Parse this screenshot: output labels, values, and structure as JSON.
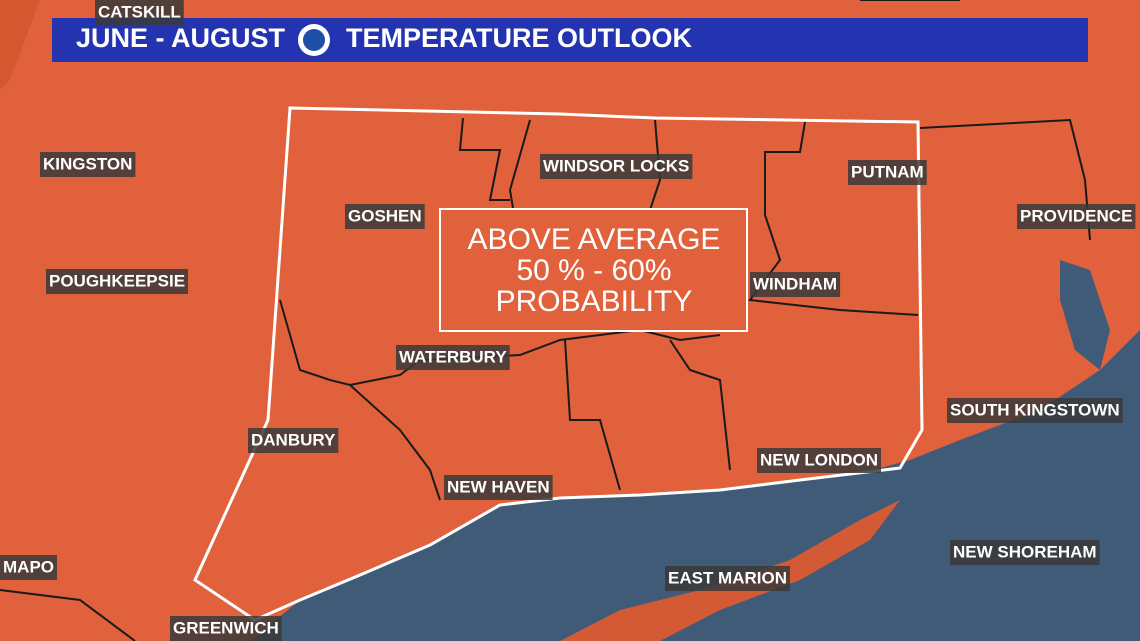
{
  "header": {
    "title_left": "JUNE - AUGUST",
    "title_right": "TEMPERATURE OUTLOOK"
  },
  "outlook": {
    "lines": [
      "ABOVE AVERAGE",
      "50 % - 60%",
      "PROBABILITY"
    ]
  },
  "places": [
    {
      "label": "CATSKILL"
    },
    {
      "label": "KINGSTON"
    },
    {
      "label": "POUGHKEEPSIE"
    },
    {
      "label": "GOSHEN"
    },
    {
      "label": "WINDSOR LOCKS"
    },
    {
      "label": "PUTNAM"
    },
    {
      "label": "PROVIDENCE"
    },
    {
      "label": "WINDHAM"
    },
    {
      "label": "WATERBURY"
    },
    {
      "label": "SOUTH KINGSTOWN"
    },
    {
      "label": "DANBURY"
    },
    {
      "label": "NEW LONDON"
    },
    {
      "label": "NEW HAVEN"
    },
    {
      "label": "NEW SHOREHAM"
    },
    {
      "label": "MAPO"
    },
    {
      "label": "EAST MARION"
    },
    {
      "label": "GREENWICH"
    }
  ]
}
